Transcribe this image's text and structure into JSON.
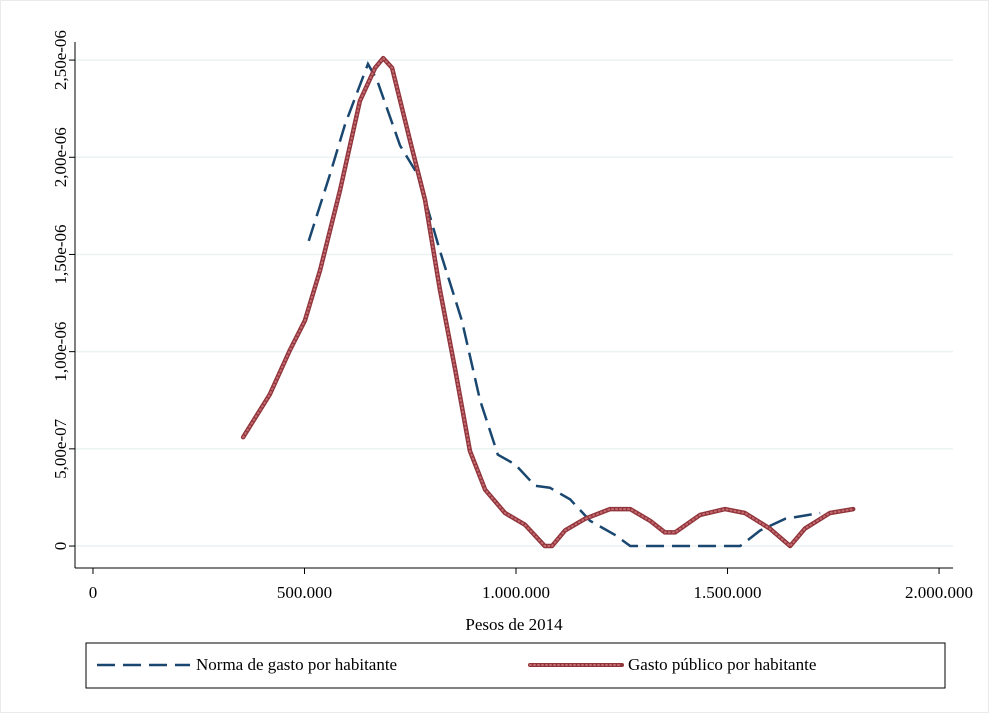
{
  "chart_data": {
    "type": "line",
    "x_label": "Pesos de 2014",
    "xlim": [
      -42500,
      2033000
    ],
    "ylim": [
      -1.13e-07,
      2.593e-06
    ],
    "xticks": [
      0,
      {
        "value": 500000,
        "label": "500.000"
      },
      {
        "value": 1000000,
        "label": "1.000.000"
      },
      {
        "value": 1500000,
        "label": "1.500.000"
      },
      {
        "value": 2000000,
        "label": "2.000.000"
      }
    ],
    "yticks": [
      0,
      {
        "value": 5e-07,
        "label": "5,00e-07"
      },
      {
        "value": 1e-06,
        "label": "1,00e-06"
      },
      {
        "value": 1.5e-06,
        "label": "1,50e-06"
      },
      {
        "value": 2e-06,
        "label": "2,00e-06"
      },
      {
        "value": 2.5e-06,
        "label": "2,50e-06"
      }
    ],
    "grid": true,
    "legend": "bottom",
    "series": [
      {
        "name": "Norma de gasto por habitante",
        "color": "#1a476f",
        "style": "dashed",
        "x": [
          510000,
          560000,
          596000,
          650000,
          671000,
          726000,
          768000,
          820000,
          872000,
          915000,
          957000,
          998000,
          1045000,
          1080000,
          1128000,
          1175000,
          1234000,
          1270000,
          1530000,
          1577000,
          1636000,
          1719000
        ],
        "values": [
          1.57e-06,
          1.91e-06,
          2.17e-06,
          2.48e-06,
          2.4e-06,
          2.06e-06,
          1.91e-06,
          1.52e-06,
          1.16e-06,
          7.5e-07,
          4.7e-07,
          4.2e-07,
          3.1e-07,
          3e-07,
          2.4e-07,
          1.3e-07,
          5.7e-08,
          0,
          0,
          8e-08,
          1.4e-07,
          1.7e-07
        ]
      },
      {
        "name": "Gasto público por habitante",
        "color": "#90353b",
        "style": "dotted",
        "x": [
          355000,
          418000,
          466000,
          501000,
          537000,
          584000,
          631000,
          667000,
          686000,
          707000,
          749000,
          785000,
          820000,
          856000,
          891000,
          927000,
          974000,
          1021000,
          1068000,
          1085000,
          1116000,
          1163000,
          1222000,
          1270000,
          1317000,
          1352000,
          1376000,
          1435000,
          1494000,
          1541000,
          1600000,
          1648000,
          1683000,
          1742000,
          1797000
        ],
        "values": [
          5.6e-07,
          7.8e-07,
          1.01e-06,
          1.16e-06,
          1.42e-06,
          1.83e-06,
          2.29e-06,
          2.46e-06,
          2.51e-06,
          2.46e-06,
          2.09e-06,
          1.78e-06,
          1.32e-06,
          9.1e-07,
          4.9e-07,
          2.9e-07,
          1.7e-07,
          1.1e-07,
          0,
          0,
          8e-08,
          1.4e-07,
          1.9e-07,
          1.9e-07,
          1.3e-07,
          7e-08,
          7e-08,
          1.6e-07,
          1.9e-07,
          1.7e-07,
          9e-08,
          0,
          9e-08,
          1.7e-07,
          1.9e-07
        ]
      }
    ]
  }
}
